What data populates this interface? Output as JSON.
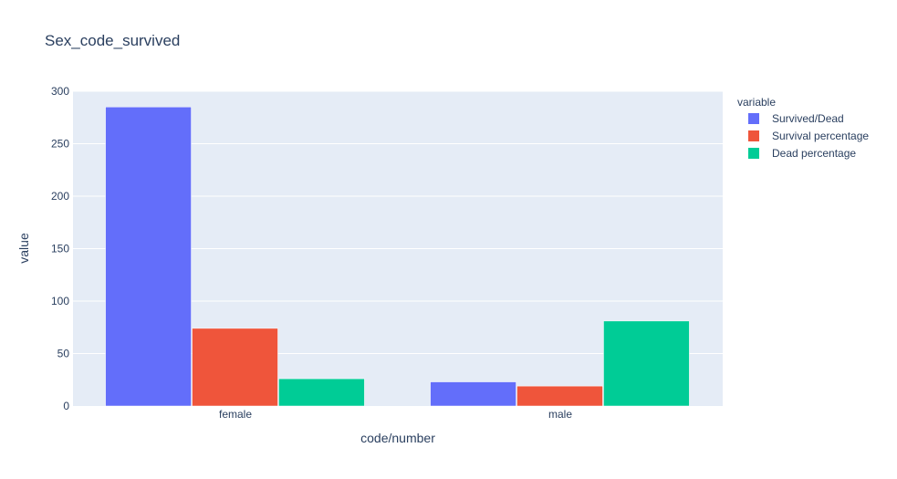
{
  "chart_data": {
    "type": "bar",
    "title": "Sex_code_survived",
    "xlabel": "code/number",
    "ylabel": "value",
    "categories": [
      "female",
      "male"
    ],
    "ylim": [
      0,
      300
    ],
    "yticks": [
      0,
      50,
      100,
      150,
      200,
      250,
      300
    ],
    "grid": true,
    "legend": {
      "title": "variable",
      "placement": "right"
    },
    "series": [
      {
        "name": "Survived/Dead",
        "color": "#636efa",
        "values": [
          285,
          23
        ]
      },
      {
        "name": "Survival percentage",
        "color": "#ef553b",
        "values": [
          74,
          19
        ]
      },
      {
        "name": "Dead percentage",
        "color": "#00cc96",
        "values": [
          26,
          81
        ]
      }
    ]
  },
  "colors": {
    "plot_background": "#e5ecf6",
    "grid": "#ffffff",
    "text": "#2a3f5f"
  }
}
